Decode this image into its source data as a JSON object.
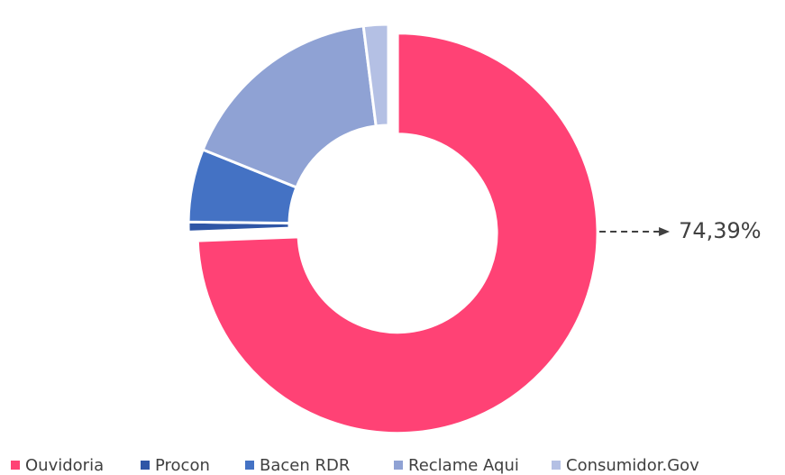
{
  "chart_data": {
    "type": "donut",
    "categories": [
      "Ouvidoria",
      "Procon",
      "Bacen RDR",
      "Reclame Aqui",
      "Consumidor.Gov"
    ],
    "values": [
      74.39,
      0.8,
      5.9,
      16.9,
      2.0
    ],
    "value_labels": [
      "74,39%",
      null,
      null,
      null,
      null
    ],
    "colors": [
      "#ff4275",
      "#2f56a6",
      "#4472c4",
      "#8fa2d4",
      "#b4c0e4"
    ],
    "legend": "bottom"
  }
}
